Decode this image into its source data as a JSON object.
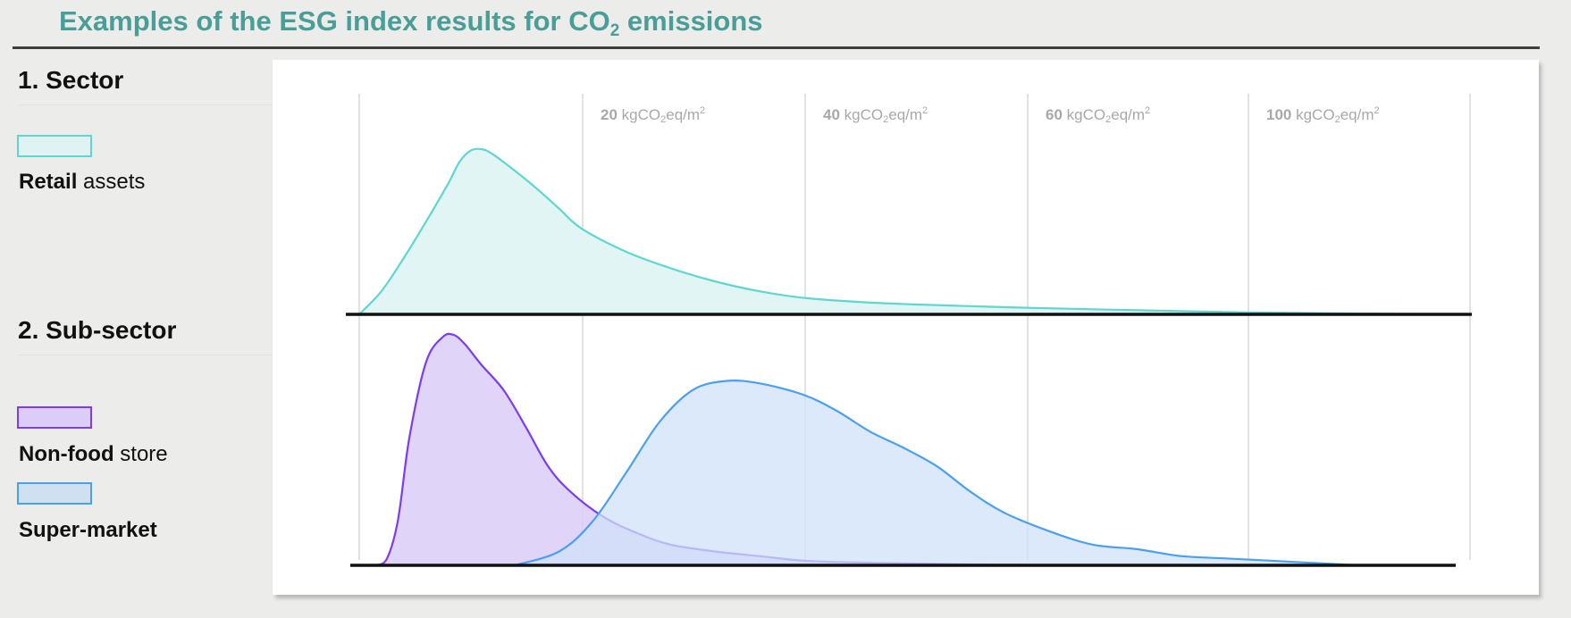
{
  "title": {
    "prefix": "Examples of the ESG index results for CO",
    "subscript": "2",
    "suffix": " emissions"
  },
  "sections": [
    {
      "heading": "1. Sector"
    },
    {
      "heading": "2. Sub-sector"
    }
  ],
  "legend": [
    {
      "bold": "Retail",
      "rest": " assets",
      "stroke": "#5fd6d0",
      "fill": "#dff3f2"
    },
    {
      "bold": "Non-food",
      "rest": " store",
      "stroke": "#7a3df0",
      "fill": "#dcccf8"
    },
    {
      "bold": "Super-market",
      "rest": "",
      "stroke": "#4aa0f0",
      "fill": "#cfe0f0"
    }
  ],
  "chart_data": {
    "type": "area",
    "xlabel": "",
    "ylabel": "",
    "tick_labels": [
      {
        "num": "20",
        "unit": "kgCO",
        "unit_tail": "eq/m",
        "sup": "2"
      },
      {
        "num": "40",
        "unit": "kgCO",
        "unit_tail": "eq/m",
        "sup": "2"
      },
      {
        "num": "60",
        "unit": "kgCO",
        "unit_tail": "eq/m",
        "sup": "2"
      },
      {
        "num": "100",
        "unit": "kgCO",
        "unit_tail": "eq/m",
        "sup": "2"
      }
    ],
    "grid": true,
    "xlim": [
      0,
      100
    ],
    "panels": [
      {
        "name": "1. Sector",
        "series": [
          {
            "name": "Retail assets",
            "stroke": "#5fd6d0",
            "fill": "#e0f5f4",
            "x": [
              0,
              2,
              4,
              6,
              8,
              9,
              10,
              11,
              12,
              14,
              16,
              18,
              20,
              24,
              28,
              32,
              36,
              40,
              45,
              50,
              55,
              60,
              70,
              80,
              90,
              100
            ],
            "y": [
              0,
              0.14,
              0.34,
              0.56,
              0.79,
              0.92,
              0.99,
              1.0,
              0.97,
              0.87,
              0.76,
              0.64,
              0.52,
              0.38,
              0.28,
              0.2,
              0.14,
              0.1,
              0.075,
              0.06,
              0.05,
              0.04,
              0.025,
              0.012,
              0.005,
              0
            ]
          }
        ]
      },
      {
        "name": "2. Sub-sector",
        "series": [
          {
            "name": "Non-food store",
            "stroke": "#7a3df0",
            "fill": "#dcccf8",
            "fill_opacity": 0.85,
            "x": [
              1.5,
              2.5,
              3.5,
              4.5,
              6,
              7.5,
              8.5,
              9.5,
              11,
              13,
              15,
              17,
              19,
              22,
              25,
              28,
              32,
              36,
              40,
              45,
              50,
              55,
              60,
              63.5
            ],
            "y": [
              0,
              0.03,
              0.2,
              0.55,
              0.88,
              0.99,
              1.0,
              0.96,
              0.87,
              0.76,
              0.6,
              0.43,
              0.32,
              0.21,
              0.14,
              0.09,
              0.06,
              0.04,
              0.02,
              0.012,
              0.008,
              0.004,
              0.002,
              0
            ]
          },
          {
            "name": "Super-market",
            "stroke": "#4aa0f0",
            "fill": "#cfe2f8",
            "fill_opacity": 0.75,
            "x": [
              14,
              18,
              21,
              24,
              27,
              30,
              33,
              36,
              40,
              43,
              46,
              49,
              52,
              55,
              58,
              62,
              66,
              70,
              74,
              78,
              82,
              86,
              90
            ],
            "y": [
              0,
              0.06,
              0.19,
              0.4,
              0.62,
              0.76,
              0.8,
              0.79,
              0.74,
              0.67,
              0.58,
              0.51,
              0.43,
              0.32,
              0.23,
              0.15,
              0.09,
              0.07,
              0.04,
              0.03,
              0.02,
              0.01,
              0
            ]
          }
        ]
      }
    ]
  }
}
